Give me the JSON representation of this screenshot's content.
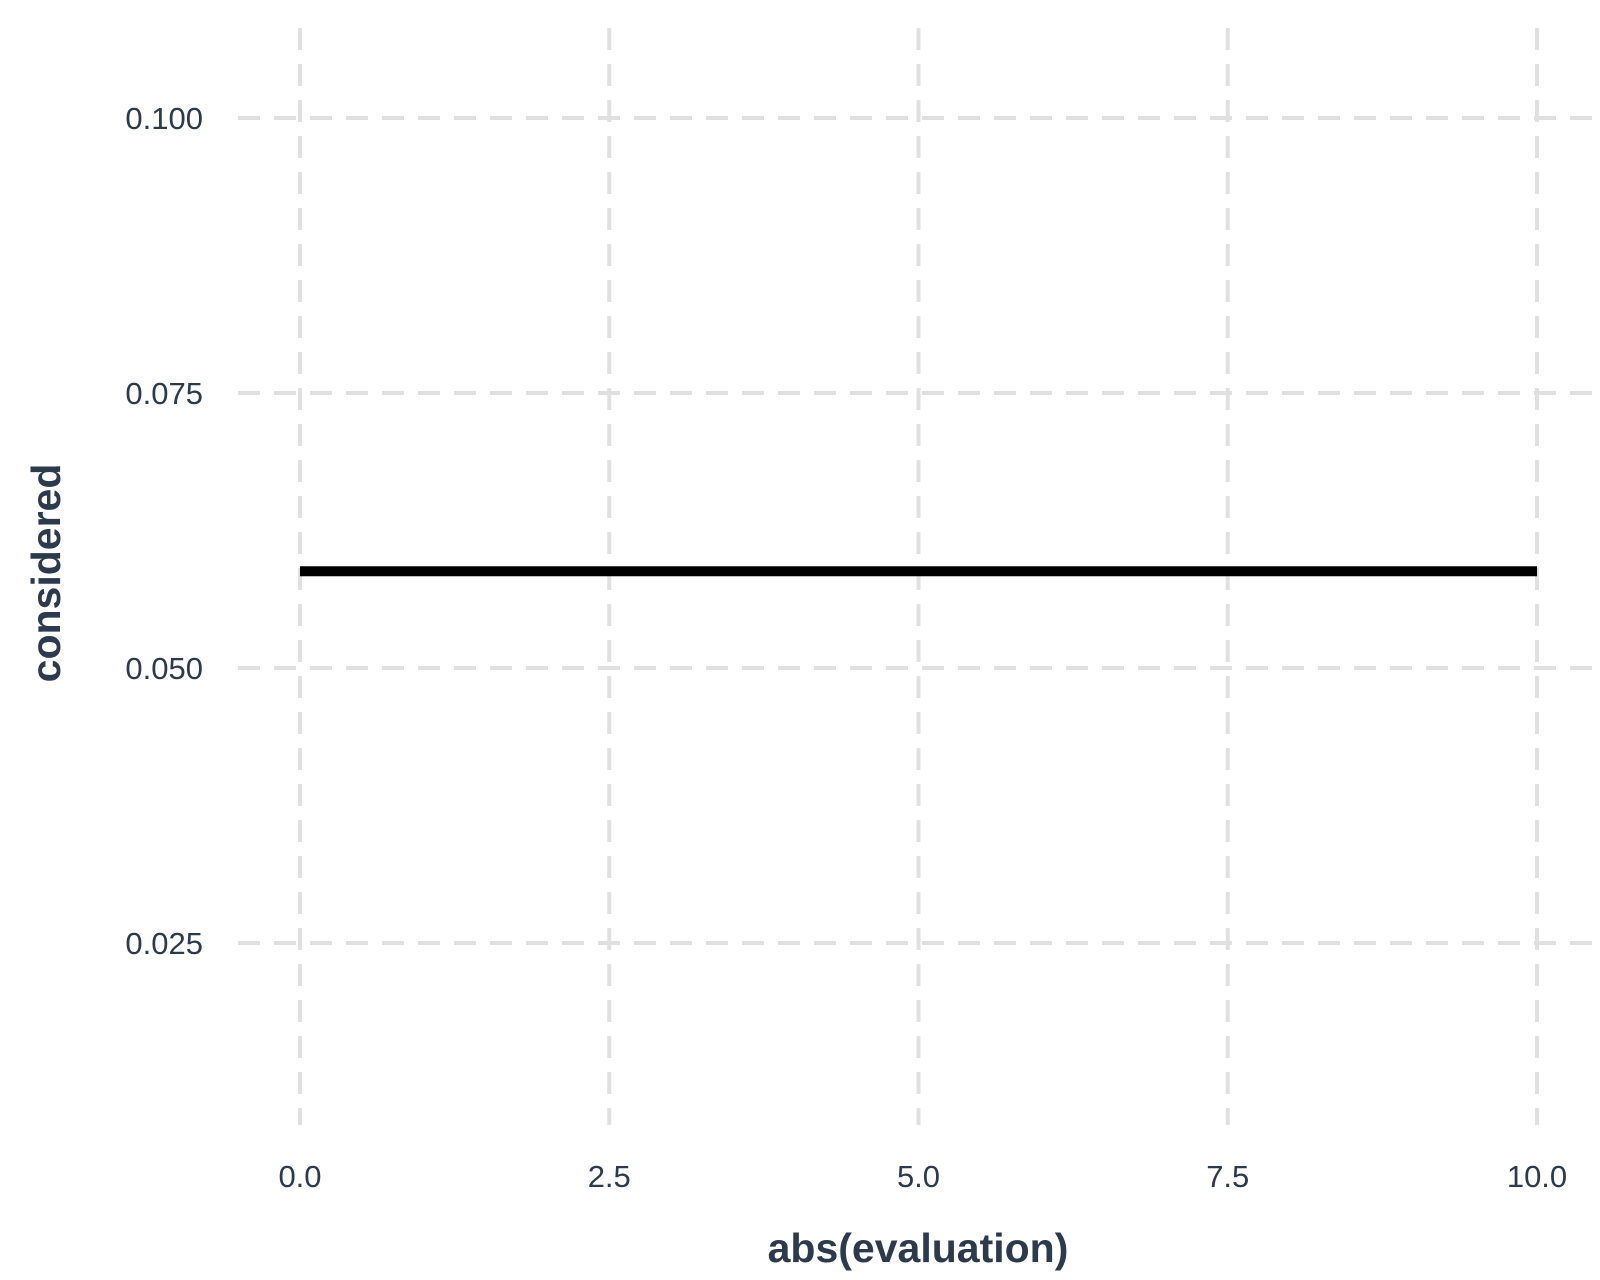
{
  "chart_data": {
    "type": "line",
    "title": "",
    "xlabel": "abs(evaluation)",
    "ylabel": "considered",
    "xlim": [
      -1.0,
      10.5
    ],
    "ylim": [
      0.0092,
      0.1092
    ],
    "x_ticks": [
      0.0,
      2.5,
      5.0,
      7.5,
      10.0
    ],
    "x_tick_labels": [
      "0.0",
      "2.5",
      "5.0",
      "7.5",
      "10.0"
    ],
    "y_ticks": [
      0.025,
      0.05,
      0.075,
      0.1
    ],
    "y_tick_labels": [
      "0.025",
      "0.050",
      "0.075",
      "0.100"
    ],
    "grid": true,
    "grid_style": "dashed",
    "legend": "none",
    "series": [
      {
        "color": "#000000",
        "x": [
          0.0,
          10.0
        ],
        "y": [
          0.0588,
          0.0588
        ]
      }
    ]
  }
}
